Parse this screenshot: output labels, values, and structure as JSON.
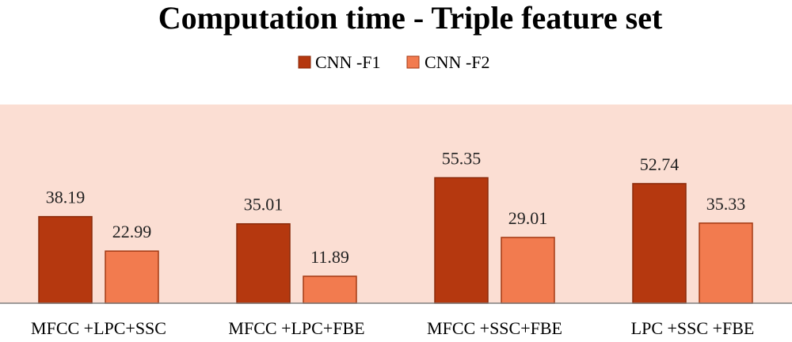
{
  "chart_data": {
    "type": "bar",
    "title": "Computation time - Triple feature set",
    "categories": [
      "MFCC +LPC+SSC",
      "MFCC +LPC+FBE",
      "MFCC +SSC+FBE",
      "LPC +SSC +FBE"
    ],
    "series": [
      {
        "name": "CNN -F1",
        "values": [
          38.19,
          35.01,
          55.35,
          52.74
        ],
        "labels": [
          "38.19",
          "35.01",
          "55.35",
          "52.74"
        ],
        "color": "#b5380f",
        "stroke": "#8a2a0a"
      },
      {
        "name": "CNN -F2",
        "values": [
          22.99,
          11.89,
          29.01,
          35.33
        ],
        "labels": [
          "22.99",
          "11.89",
          "29.01",
          "35.33"
        ],
        "color": "#f27b4f",
        "stroke": "#a33a14"
      }
    ],
    "ylim": [
      0,
      63
    ],
    "xlabel": "",
    "ylabel": "",
    "grid": false,
    "legend_position": "top-center",
    "plot_background": "#fbded3",
    "axis_color": "#7f7f7f"
  }
}
